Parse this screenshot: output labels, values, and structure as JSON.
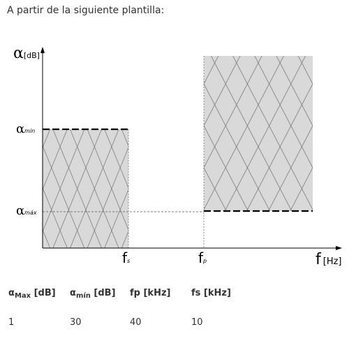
{
  "intro_text": "A partir de la siguiente plantilla:",
  "diagram": {
    "y_axis_symbol": "α",
    "y_axis_unit": "[dB]",
    "alpha_min_label": "α",
    "alpha_min_sub": "min",
    "alpha_max_label": "α",
    "alpha_max_sub": "máx",
    "fs_label": "f",
    "fs_sub": "s",
    "fp_label": "f",
    "fp_sub": "p",
    "x_axis_symbol": "f",
    "x_axis_unit": "[Hz]"
  },
  "table": {
    "headers": [
      {
        "main": "α",
        "sub": "Max",
        "unit": " [dB]"
      },
      {
        "main": "α",
        "sub": "mín",
        "unit": " [dB]"
      },
      {
        "main": "fp [kHz]",
        "sub": "",
        "unit": ""
      },
      {
        "main": "fs [kHz]",
        "sub": "",
        "unit": ""
      }
    ],
    "values": [
      "1",
      "30",
      "40",
      "10"
    ]
  },
  "colors": {
    "fill": "#d9d9d9",
    "hatch": "#7a7a7a",
    "axis": "#000000",
    "text": "#333333"
  }
}
